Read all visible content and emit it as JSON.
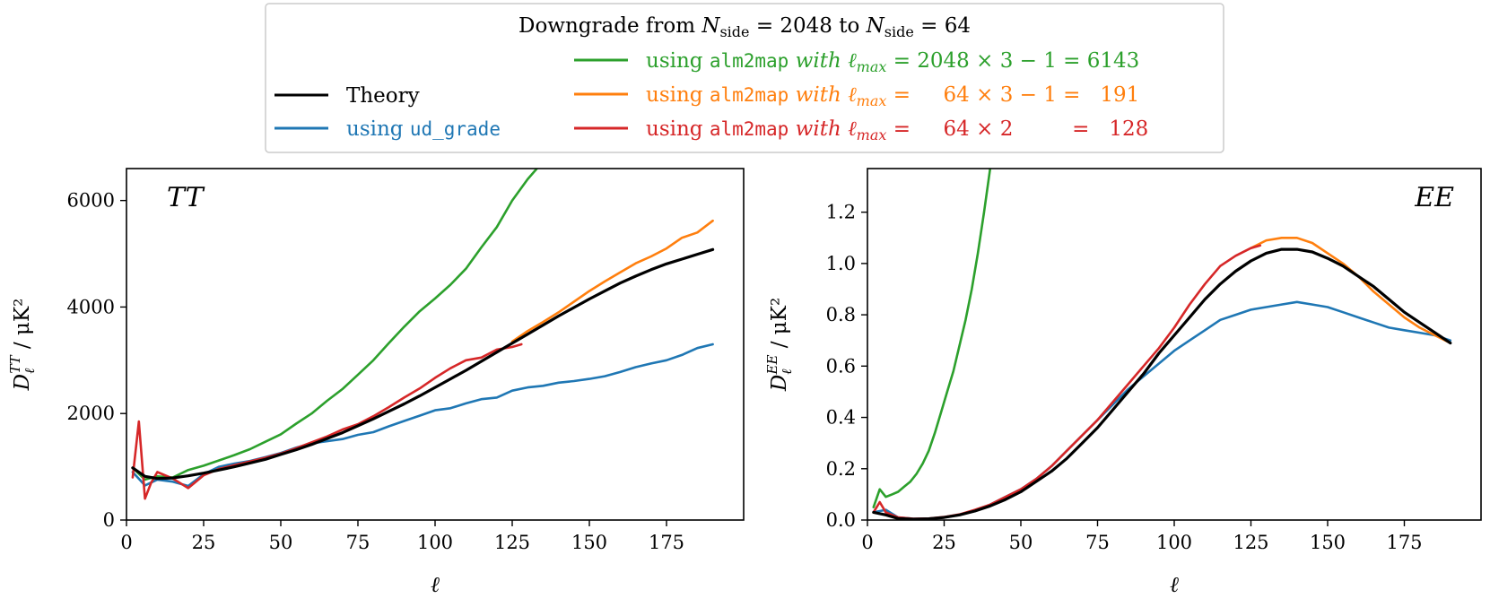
{
  "legend": {
    "title": "Downgrade from N_side = 2048 to N_side = 64",
    "title_prefix": "Downgrade from ",
    "title_n": "N",
    "title_sub": "side",
    "title_mid": " = 2048 to ",
    "title_end": " = 64",
    "entries": [
      {
        "key": "theory",
        "label": "Theory",
        "color": "#000000"
      },
      {
        "key": "ud",
        "label_pre": "using ",
        "label_code": "ud_grade",
        "label_post": "",
        "color": "#1f77b4"
      },
      {
        "key": "full",
        "label_pre": "using ",
        "label_code": "alm2map",
        "label_post": " with ℓ",
        "sub": "max",
        "eq": " = 2048 × 3 − 1 = 6143",
        "color": "#2ca02c"
      },
      {
        "key": "lmax191",
        "label_pre": "using ",
        "label_code": "alm2map",
        "label_post": " with ℓ",
        "sub": "max",
        "eq": " =     64 × 3 − 1 =   191",
        "color": "#ff7f0e"
      },
      {
        "key": "lmax128",
        "label_pre": "using ",
        "label_code": "alm2map",
        "label_post": " with ℓ",
        "sub": "max",
        "eq": " =     64 × 2         =   128",
        "color": "#d62728"
      }
    ]
  },
  "chart_data": [
    {
      "type": "line",
      "title": "TT",
      "xlabel": "ℓ",
      "ylabel_main": "D",
      "ylabel_sub": "ℓ",
      "ylabel_sup": "TT",
      "ylabel_unit": " / μK²",
      "xlim": [
        0,
        200
      ],
      "ylim": [
        0,
        6600
      ],
      "xticks": [
        0,
        25,
        50,
        75,
        100,
        125,
        150,
        175
      ],
      "yticks": [
        0,
        2000,
        4000,
        6000
      ],
      "series": [
        {
          "name": "using ud_grade",
          "color": "#1f77b4",
          "x": [
            2,
            6,
            10,
            15,
            20,
            25,
            30,
            35,
            40,
            45,
            50,
            55,
            60,
            65,
            70,
            75,
            80,
            85,
            90,
            95,
            100,
            105,
            110,
            115,
            120,
            125,
            130,
            135,
            140,
            145,
            150,
            155,
            160,
            165,
            170,
            175,
            180,
            185,
            190
          ],
          "y": [
            900,
            650,
            760,
            720,
            640,
            860,
            1000,
            1060,
            1110,
            1180,
            1260,
            1360,
            1440,
            1480,
            1520,
            1600,
            1650,
            1760,
            1860,
            1960,
            2060,
            2100,
            2190,
            2270,
            2300,
            2430,
            2490,
            2520,
            2580,
            2610,
            2650,
            2700,
            2780,
            2870,
            2940,
            3000,
            3100,
            3230,
            3300
          ]
        },
        {
          "name": "using alm2map with ℓmax = 2048 × 3 − 1 = 6143",
          "color": "#2ca02c",
          "x": [
            2,
            6,
            10,
            15,
            20,
            25,
            30,
            35,
            40,
            45,
            50,
            55,
            60,
            65,
            70,
            75,
            80,
            85,
            90,
            95,
            100,
            105,
            110,
            115,
            120,
            125,
            130,
            133
          ],
          "y": [
            980,
            760,
            820,
            800,
            940,
            1020,
            1120,
            1220,
            1330,
            1470,
            1610,
            1810,
            2000,
            2240,
            2460,
            2730,
            3000,
            3320,
            3630,
            3920,
            4160,
            4420,
            4720,
            5120,
            5500,
            6000,
            6400,
            6600
          ]
        },
        {
          "name": "using alm2map with ℓmax = 64 × 3 − 1 = 191",
          "color": "#ff7f0e",
          "x": [
            125,
            130,
            135,
            140,
            145,
            150,
            155,
            160,
            165,
            170,
            175,
            180,
            185,
            190
          ],
          "y": [
            3350,
            3550,
            3720,
            3900,
            4100,
            4300,
            4480,
            4650,
            4820,
            4950,
            5100,
            5300,
            5400,
            5620
          ]
        },
        {
          "name": "using alm2map with ℓmax = 64 × 2 = 128",
          "color": "#d62728",
          "x": [
            2,
            4,
            6,
            8,
            10,
            15,
            20,
            25,
            30,
            35,
            40,
            45,
            50,
            55,
            60,
            65,
            70,
            75,
            80,
            85,
            90,
            95,
            100,
            105,
            110,
            115,
            120,
            125,
            128
          ],
          "y": [
            800,
            1850,
            400,
            700,
            900,
            780,
            600,
            840,
            960,
            1030,
            1100,
            1170,
            1250,
            1350,
            1460,
            1570,
            1700,
            1800,
            1950,
            2120,
            2300,
            2470,
            2670,
            2850,
            3000,
            3050,
            3200,
            3250,
            3300
          ]
        },
        {
          "name": "Theory",
          "color": "#000000",
          "x": [
            2,
            6,
            10,
            15,
            20,
            25,
            30,
            35,
            40,
            45,
            50,
            55,
            60,
            65,
            70,
            75,
            80,
            85,
            90,
            95,
            100,
            105,
            110,
            115,
            120,
            125,
            130,
            135,
            140,
            145,
            150,
            155,
            160,
            165,
            170,
            175,
            180,
            185,
            190
          ],
          "y": [
            980,
            820,
            780,
            790,
            830,
            880,
            940,
            1000,
            1070,
            1140,
            1230,
            1320,
            1420,
            1530,
            1640,
            1770,
            1900,
            2040,
            2180,
            2330,
            2490,
            2650,
            2810,
            2980,
            3150,
            3320,
            3490,
            3660,
            3830,
            3990,
            4150,
            4300,
            4450,
            4580,
            4700,
            4810,
            4900,
            4990,
            5080
          ]
        }
      ]
    },
    {
      "type": "line",
      "title": "EE",
      "xlabel": "ℓ",
      "ylabel_main": "D",
      "ylabel_sub": "ℓ",
      "ylabel_sup": "EE",
      "ylabel_unit": " / μK²",
      "xlim": [
        0,
        200
      ],
      "ylim": [
        0,
        1.37
      ],
      "xticks": [
        0,
        25,
        50,
        75,
        100,
        125,
        150,
        175
      ],
      "yticks": [
        0.0,
        0.2,
        0.4,
        0.6,
        0.8,
        1.0,
        1.2
      ],
      "series": [
        {
          "name": "using ud_grade",
          "color": "#1f77b4",
          "x": [
            2,
            6,
            10,
            15,
            20,
            25,
            30,
            35,
            40,
            45,
            50,
            55,
            60,
            65,
            70,
            75,
            80,
            85,
            90,
            95,
            100,
            105,
            110,
            115,
            120,
            125,
            130,
            135,
            140,
            145,
            150,
            155,
            160,
            165,
            170,
            175,
            180,
            185,
            190
          ],
          "y": [
            0.03,
            0.04,
            0.01,
            0.005,
            0.005,
            0.01,
            0.02,
            0.035,
            0.06,
            0.09,
            0.12,
            0.16,
            0.21,
            0.27,
            0.33,
            0.39,
            0.45,
            0.51,
            0.56,
            0.61,
            0.66,
            0.7,
            0.74,
            0.78,
            0.8,
            0.82,
            0.83,
            0.84,
            0.85,
            0.84,
            0.83,
            0.81,
            0.79,
            0.77,
            0.75,
            0.74,
            0.73,
            0.72,
            0.7
          ]
        },
        {
          "name": "using alm2map with ℓmax = 2048 × 3 − 1 = 6143",
          "color": "#2ca02c",
          "x": [
            2,
            4,
            6,
            8,
            10,
            12,
            14,
            16,
            18,
            20,
            22,
            24,
            26,
            28,
            30,
            32,
            34,
            36,
            38,
            40
          ],
          "y": [
            0.05,
            0.12,
            0.09,
            0.1,
            0.11,
            0.13,
            0.15,
            0.18,
            0.22,
            0.27,
            0.34,
            0.42,
            0.5,
            0.58,
            0.68,
            0.78,
            0.9,
            1.04,
            1.2,
            1.37
          ]
        },
        {
          "name": "using alm2map with ℓmax = 64 × 3 − 1 = 191",
          "color": "#ff7f0e",
          "x": [
            125,
            130,
            135,
            140,
            145,
            150,
            155,
            160,
            165,
            170,
            175,
            180,
            185,
            190
          ],
          "y": [
            1.06,
            1.09,
            1.1,
            1.1,
            1.08,
            1.04,
            1.0,
            0.95,
            0.89,
            0.84,
            0.79,
            0.75,
            0.72,
            0.69
          ]
        },
        {
          "name": "using alm2map with ℓmax = 64 × 2 = 128",
          "color": "#d62728",
          "x": [
            2,
            4,
            6,
            8,
            10,
            15,
            20,
            25,
            30,
            35,
            40,
            45,
            50,
            55,
            60,
            65,
            70,
            75,
            80,
            85,
            90,
            95,
            100,
            105,
            110,
            115,
            120,
            125,
            128
          ],
          "y": [
            0.03,
            0.07,
            0.03,
            0.02,
            0.01,
            0.005,
            0.006,
            0.012,
            0.022,
            0.04,
            0.06,
            0.09,
            0.12,
            0.16,
            0.21,
            0.27,
            0.33,
            0.39,
            0.46,
            0.53,
            0.6,
            0.67,
            0.75,
            0.84,
            0.92,
            0.99,
            1.03,
            1.06,
            1.07
          ]
        },
        {
          "name": "Theory",
          "color": "#000000",
          "x": [
            2,
            6,
            10,
            15,
            20,
            25,
            30,
            35,
            40,
            45,
            50,
            55,
            60,
            65,
            70,
            75,
            80,
            85,
            90,
            95,
            100,
            105,
            110,
            115,
            120,
            125,
            130,
            135,
            140,
            145,
            150,
            155,
            160,
            165,
            170,
            175,
            180,
            185,
            190
          ],
          "y": [
            0.03,
            0.02,
            0.006,
            0.003,
            0.005,
            0.01,
            0.02,
            0.035,
            0.055,
            0.08,
            0.11,
            0.15,
            0.19,
            0.24,
            0.3,
            0.36,
            0.43,
            0.5,
            0.57,
            0.65,
            0.72,
            0.79,
            0.86,
            0.92,
            0.97,
            1.01,
            1.04,
            1.055,
            1.055,
            1.045,
            1.02,
            0.99,
            0.95,
            0.91,
            0.86,
            0.81,
            0.77,
            0.73,
            0.69
          ]
        }
      ]
    }
  ]
}
